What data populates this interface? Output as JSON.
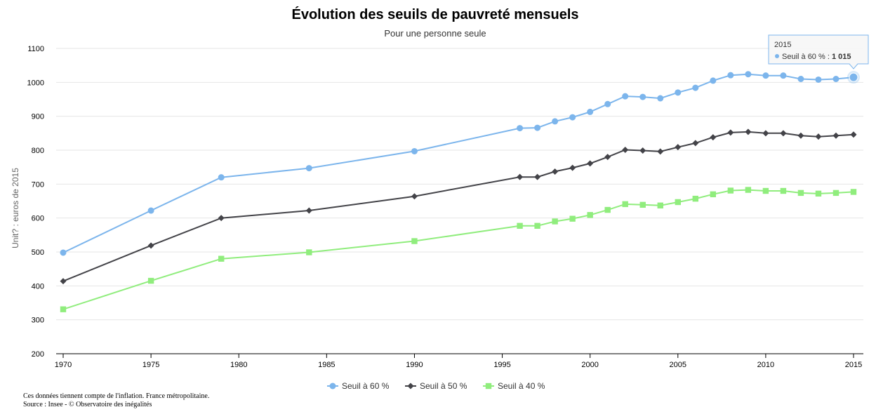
{
  "chart_data": {
    "type": "line",
    "title": "Évolution des seuils de pauvreté mensuels",
    "subtitle": "Pour une personne seule",
    "ylabel": "Unit? : euros de 2015",
    "xlabel": "",
    "xlim": [
      1970,
      2015
    ],
    "ylim": [
      200,
      1100
    ],
    "x_ticks": [
      1970,
      1975,
      1980,
      1985,
      1990,
      1995,
      2000,
      2005,
      2010,
      2015
    ],
    "y_ticks": [
      200,
      300,
      400,
      500,
      600,
      700,
      800,
      900,
      1000,
      1100
    ],
    "grid": "horizontal",
    "legend_position": "bottom-center",
    "x": [
      1970,
      1975,
      1979,
      1984,
      1990,
      1996,
      1997,
      1998,
      1999,
      2000,
      2001,
      2002,
      2003,
      2004,
      2005,
      2006,
      2007,
      2008,
      2009,
      2010,
      2011,
      2012,
      2013,
      2014,
      2015
    ],
    "series": [
      {
        "name": "Seuil à 60 %",
        "color": "#7cb5ec",
        "marker": "circle",
        "values": [
          498,
          622,
          720,
          747,
          797,
          865,
          866,
          885,
          897,
          913,
          936,
          959,
          957,
          953,
          970,
          984,
          1005,
          1021,
          1024,
          1020,
          1020,
          1010,
          1008,
          1010,
          1015
        ]
      },
      {
        "name": "Seuil à 50 %",
        "color": "#434348",
        "marker": "diamond",
        "values": [
          414,
          519,
          600,
          622,
          664,
          721,
          721,
          737,
          748,
          761,
          780,
          801,
          799,
          796,
          809,
          821,
          838,
          852,
          854,
          850,
          850,
          843,
          840,
          843,
          846
        ]
      },
      {
        "name": "Seuil à 40 %",
        "color": "#90ed7d",
        "marker": "square",
        "values": [
          331,
          415,
          480,
          499,
          532,
          577,
          577,
          590,
          598,
          609,
          624,
          641,
          639,
          637,
          647,
          657,
          670,
          681,
          683,
          680,
          680,
          674,
          672,
          674,
          677
        ]
      }
    ],
    "tooltip": {
      "header": "2015",
      "series_label": "Seuil à 60 % : ",
      "value_label": "1 015"
    }
  },
  "footnotes": {
    "line1": "Ces données tiennent compte de l'inflation. France métropolitaine.",
    "line2": "Source : Insee - © Observatoire des inégalités"
  }
}
